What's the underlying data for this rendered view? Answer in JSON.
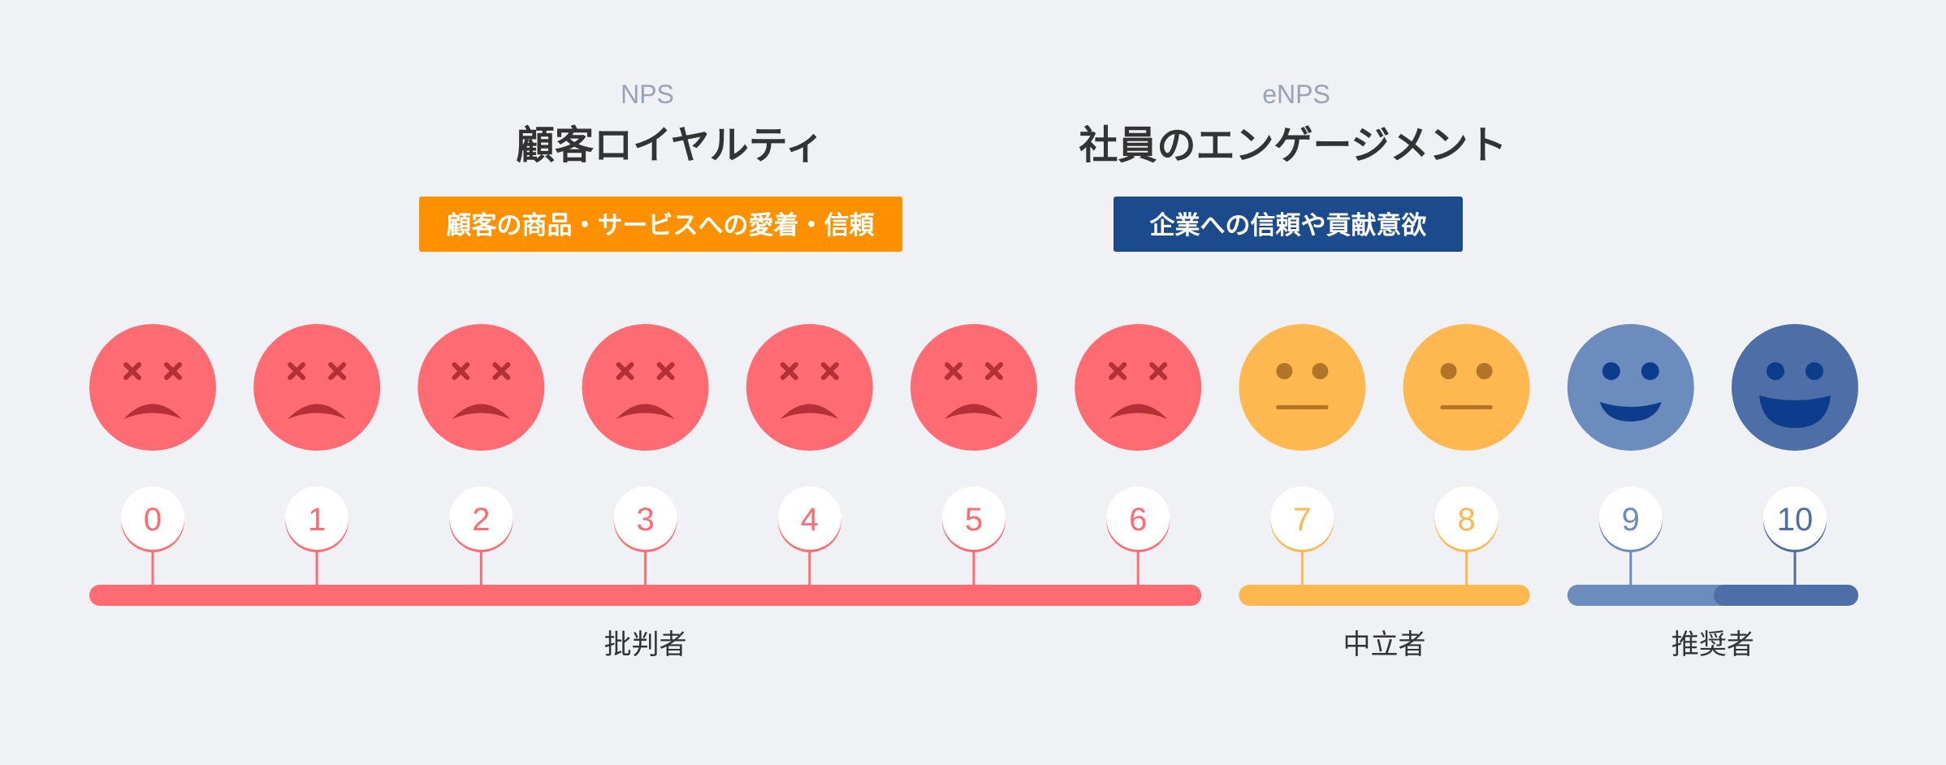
{
  "nps": {
    "label": "NPS",
    "title": "顧客ロイヤルティ",
    "badge": "顧客の商品・サービスへの愛着・信頼",
    "badge_color": "#ff9100"
  },
  "enps": {
    "label": "eNPS",
    "title": "社員のエンゲージメント",
    "badge": "企業への信頼や貢献意欲",
    "badge_color": "#1b4b8c"
  },
  "scale": [
    {
      "score": "0",
      "mood": "sad"
    },
    {
      "score": "1",
      "mood": "sad"
    },
    {
      "score": "2",
      "mood": "sad"
    },
    {
      "score": "3",
      "mood": "sad"
    },
    {
      "score": "4",
      "mood": "sad"
    },
    {
      "score": "5",
      "mood": "sad"
    },
    {
      "score": "6",
      "mood": "sad"
    },
    {
      "score": "7",
      "mood": "neutral"
    },
    {
      "score": "8",
      "mood": "neutral"
    },
    {
      "score": "9",
      "mood": "happy"
    },
    {
      "score": "10",
      "mood": "very-happy"
    }
  ],
  "groups": [
    {
      "name": "批判者",
      "from": 0,
      "to": 6,
      "color": "#ff6b73"
    },
    {
      "name": "中立者",
      "from": 7,
      "to": 8,
      "color": "#ffb750"
    },
    {
      "name": "推奨者",
      "from": 9,
      "to": 10,
      "color": "#6b8cbd"
    }
  ],
  "colors": {
    "sad_face": "#ff6b73",
    "sad_feature": "#b53036",
    "neutral_face": "#ffb750",
    "neutral_feature": "#b27428",
    "happy_face": "#6b8cbd",
    "very_happy_face": "#4e6ea8",
    "happy_feature": "#0e3c8c",
    "promoter_bar_dark": "#4e6ea8",
    "label_gray": "#9aa1b8",
    "title_dark": "#333333",
    "text_dark": "#333333"
  }
}
